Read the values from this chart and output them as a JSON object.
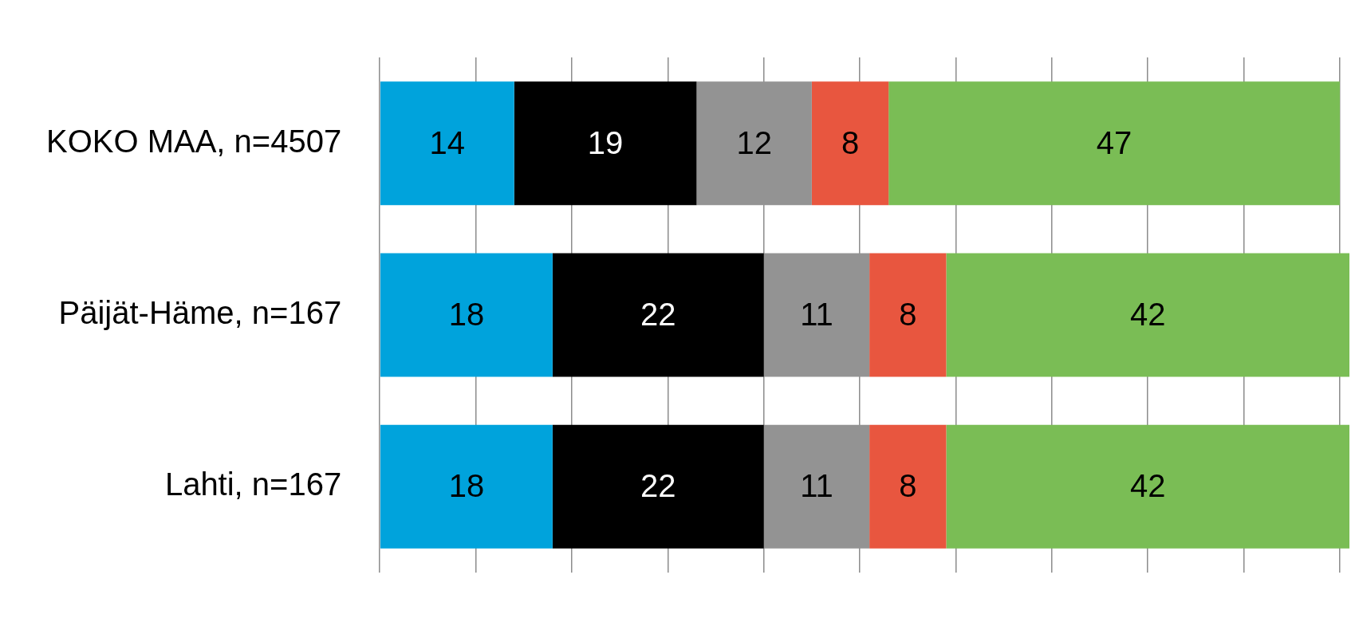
{
  "chart_data": {
    "type": "bar",
    "orientation": "horizontal",
    "stacked": true,
    "categories": [
      "KOKO MAA, n=4507",
      "Päijät-Häme, n=167",
      "Lahti, n=167"
    ],
    "series": [
      {
        "color": "#00a3dc",
        "values": [
          14,
          18,
          18
        ]
      },
      {
        "color": "#000000",
        "values": [
          19,
          22,
          22
        ]
      },
      {
        "color": "#939393",
        "values": [
          12,
          11,
          11
        ]
      },
      {
        "color": "#e8563f",
        "values": [
          8,
          8,
          8
        ]
      },
      {
        "color": "#7abd55",
        "values": [
          47,
          42,
          42
        ]
      }
    ],
    "xlim": [
      0,
      101
    ],
    "xticks": [
      {
        "value": 0,
        "label": null
      },
      {
        "value": 10,
        "label": null
      },
      {
        "value": 20,
        "label": null
      },
      {
        "value": 30,
        "label": null
      },
      {
        "value": 40,
        "label": null
      },
      {
        "value": 50,
        "label": null
      },
      {
        "value": 60,
        "label": null
      },
      {
        "value": 70,
        "label": null
      },
      {
        "value": 80,
        "label": null
      },
      {
        "value": 90,
        "label": null
      },
      {
        "value": 100,
        "label": null
      }
    ],
    "tick_labels": "y",
    "grid": "x",
    "data_labels": true,
    "legend": false
  }
}
